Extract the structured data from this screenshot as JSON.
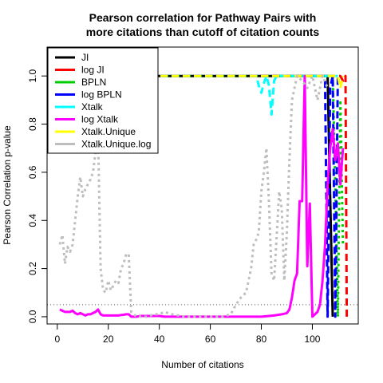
{
  "chart_data": {
    "type": "line",
    "title": "Pearson correlation for Pathway Pairs with more citations than cutoff of citation counts",
    "title_lines": [
      "Pearson correlation for Pathway Pairs with",
      "more citations than cutoff of citation counts"
    ],
    "xlabel": "Number of citations",
    "ylabel": "Pearson Correlation p-value",
    "xlim": [
      -4,
      118
    ],
    "ylim": [
      -0.03,
      1.12
    ],
    "x_ticks": [
      0,
      20,
      40,
      60,
      80,
      100
    ],
    "y_ticks": [
      0.0,
      0.2,
      0.4,
      0.6,
      0.8,
      1.0
    ],
    "x_tick_labels": [
      "0",
      "20",
      "40",
      "60",
      "80",
      "100"
    ],
    "y_tick_labels": [
      "0.0",
      "0.2",
      "0.4",
      "0.6",
      "0.8",
      "1.0"
    ],
    "reference_line": {
      "y": 0.05,
      "style": "dotted",
      "color": "#555555"
    },
    "legend_position": "top-left",
    "grid": false,
    "series": [
      {
        "name": "JI",
        "color": "#000000",
        "dash": "solid",
        "x": [
          1,
          20,
          40,
          60,
          80,
          100,
          105,
          106,
          107,
          108
        ],
        "y": [
          1.0,
          1.0,
          1.0,
          1.0,
          1.0,
          1.0,
          1.0,
          1.0,
          0.5,
          0.0
        ]
      },
      {
        "name": "log JI",
        "color": "#ff0000",
        "dash": "dashed",
        "x": [
          1,
          40,
          80,
          110,
          111,
          112,
          113,
          113.5
        ],
        "y": [
          1.0,
          1.0,
          1.0,
          1.0,
          1.0,
          0.98,
          1.0,
          0.0
        ]
      },
      {
        "name": "BPLN",
        "color": "#00cc00",
        "dash": "dotted",
        "x": [
          1,
          40,
          80,
          108,
          109,
          110,
          111,
          112
        ],
        "y": [
          1.0,
          1.0,
          1.0,
          1.0,
          0.55,
          0.0,
          0.9,
          0.3
        ]
      },
      {
        "name": "log BPLN",
        "color": "#0000ff",
        "dash": "dashed",
        "x": [
          1,
          40,
          80,
          104,
          105,
          106,
          107,
          108,
          109,
          110
        ],
        "y": [
          1.0,
          1.0,
          1.0,
          1.0,
          0.98,
          0.0,
          0.95,
          1.0,
          0.0,
          1.0
        ]
      },
      {
        "name": "Xtalk",
        "color": "#00ffff",
        "dash": "dashed",
        "x": [
          1,
          20,
          40,
          60,
          78,
          79,
          80,
          81,
          82,
          83,
          84,
          85,
          86,
          90,
          100,
          110
        ],
        "y": [
          1.0,
          1.0,
          1.0,
          1.0,
          1.0,
          0.96,
          0.93,
          0.97,
          1.0,
          0.96,
          0.84,
          0.98,
          1.0,
          1.0,
          1.0,
          1.0
        ]
      },
      {
        "name": "log Xtalk",
        "color": "#ff00ff",
        "dash": "solid",
        "x": [
          1,
          2,
          3,
          4,
          5,
          6,
          7,
          8,
          9,
          10,
          11,
          12,
          13,
          14,
          15,
          16,
          17,
          18,
          19,
          20,
          21,
          22,
          23,
          24,
          25,
          26,
          27,
          28,
          29,
          30,
          31,
          32,
          33,
          34,
          35,
          36,
          38,
          40,
          42,
          44,
          46,
          50,
          55,
          60,
          65,
          70,
          75,
          80,
          85,
          88,
          90,
          91,
          92,
          93,
          94,
          95,
          96,
          97,
          98,
          99,
          100,
          101,
          102,
          103,
          104,
          105,
          106,
          107,
          108,
          109,
          110,
          111,
          112
        ],
        "y": [
          0.03,
          0.025,
          0.02,
          0.02,
          0.02,
          0.025,
          0.015,
          0.01,
          0.015,
          0.01,
          0.005,
          0.01,
          0.01,
          0.015,
          0.02,
          0.03,
          0.01,
          0.005,
          0.005,
          0.005,
          0.005,
          0.005,
          0.005,
          0.005,
          0.007,
          0.008,
          0.01,
          0.01,
          0.0,
          0.0,
          0.0,
          0.002,
          0.003,
          0.003,
          0.003,
          0.003,
          0.003,
          0.003,
          0.0,
          0.0,
          0.0,
          0.0,
          0.0,
          0.0,
          0.0,
          0.0,
          0.0,
          0.0,
          0.005,
          0.01,
          0.015,
          0.03,
          0.08,
          0.15,
          0.18,
          0.48,
          0.48,
          1.0,
          0.21,
          0.47,
          0.0,
          0.01,
          0.02,
          0.05,
          0.15,
          0.3,
          0.55,
          0.7,
          0.78,
          0.65,
          0.72,
          0.55,
          0.7
        ]
      },
      {
        "name": "Xtalk.Unique",
        "color": "#ffff00",
        "dash": "dashed",
        "x": [
          1,
          40,
          80,
          100,
          110,
          111,
          112
        ],
        "y": [
          1.0,
          1.0,
          1.0,
          1.0,
          1.0,
          0.95,
          1.0
        ]
      },
      {
        "name": "Xtalk.Unique.log",
        "color": "#bebebe",
        "dash": "dotted",
        "x": [
          1,
          2,
          3,
          4,
          5,
          6,
          7,
          8,
          9,
          10,
          11,
          12,
          13,
          14,
          15,
          16,
          17,
          18,
          19,
          20,
          21,
          22,
          23,
          24,
          25,
          26,
          27,
          28,
          29,
          30,
          31,
          32,
          35,
          38,
          40,
          42,
          45,
          50,
          55,
          60,
          65,
          68,
          70,
          72,
          74,
          76,
          77,
          78,
          79,
          80,
          81,
          82,
          83,
          84,
          85,
          86,
          87,
          88,
          89,
          90,
          91,
          92,
          94,
          96,
          98,
          100,
          102,
          104,
          106
        ],
        "y": [
          0.3,
          0.34,
          0.22,
          0.29,
          0.27,
          0.3,
          0.4,
          0.5,
          0.58,
          0.5,
          0.53,
          0.55,
          0.57,
          0.6,
          0.68,
          0.75,
          0.2,
          0.11,
          0.1,
          0.15,
          0.11,
          0.13,
          0.15,
          0.14,
          0.2,
          0.22,
          0.26,
          0.26,
          0.02,
          0.01,
          0.0,
          0.0,
          0.0,
          0.01,
          0.01,
          0.02,
          0.01,
          0.0,
          0.0,
          0.0,
          0.0,
          0.01,
          0.05,
          0.08,
          0.1,
          0.2,
          0.3,
          0.32,
          0.35,
          0.52,
          0.6,
          0.7,
          0.47,
          0.18,
          0.15,
          0.33,
          0.52,
          0.45,
          0.15,
          0.35,
          0.65,
          0.9,
          1.0,
          0.98,
          0.95,
          1.0,
          0.9,
          1.0,
          0.95
        ]
      }
    ]
  }
}
